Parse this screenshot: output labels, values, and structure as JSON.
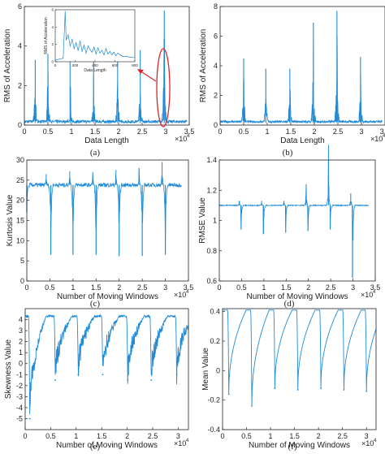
{
  "style": {
    "series_color": "#1f8ad6",
    "axis_color": "#222222",
    "callout_color": "#d9262c"
  },
  "chart_data": [
    {
      "type": "line",
      "caption": "(a)",
      "xlabel": "Data Length",
      "ylabel": "RMS of Acceleration",
      "xlim": [
        0,
        35000
      ],
      "ylim": [
        0,
        6
      ],
      "xticks": [
        0,
        5000,
        10000,
        15000,
        20000,
        25000,
        30000,
        35000
      ],
      "xtick_labels": [
        "0",
        "0.5",
        "1",
        "1.5",
        "2",
        "2.5",
        "3",
        "3.5"
      ],
      "yticks": [
        0,
        2,
        4,
        6
      ],
      "ytick_labels": [
        "0",
        "2",
        "4",
        "6"
      ],
      "x_multiplier": "×10",
      "x_multiplier_exp": "4",
      "baseline": 0.1,
      "peaks": [
        {
          "x": 2300,
          "y": 3.3
        },
        {
          "x": 5000,
          "y": 3.6
        },
        {
          "x": 9700,
          "y": 3.5
        },
        {
          "x": 14700,
          "y": 3.5
        },
        {
          "x": 19800,
          "y": 3.6
        },
        {
          "x": 24600,
          "y": 3.8
        },
        {
          "x": 29700,
          "y": 5.8
        }
      ],
      "inset": {
        "xlabel": "Data Length",
        "ylabel": "RMS of Acceleration",
        "xticks": [
          0,
          200,
          400,
          600,
          800
        ],
        "xtick_labels": [
          "0",
          "200",
          "400",
          "600",
          "800"
        ],
        "yticks": [
          0,
          2,
          4,
          6
        ],
        "ytick_labels": [
          "0",
          "2",
          "4",
          "6"
        ],
        "xlim": [
          0,
          800
        ],
        "ylim": [
          0,
          6
        ],
        "x": [
          0,
          40,
          80,
          100,
          110,
          130,
          150,
          170,
          190,
          210,
          230,
          250,
          270,
          290,
          310,
          330,
          350,
          370,
          390,
          410,
          430,
          450,
          470,
          490,
          510,
          530,
          550,
          570,
          590,
          610,
          630,
          650,
          680,
          720,
          760,
          800
        ],
        "y": [
          0.2,
          0.3,
          0.4,
          5.8,
          2.5,
          3.1,
          1.8,
          2.6,
          1.5,
          2.2,
          1.3,
          2.4,
          1.2,
          1.9,
          1.0,
          1.8,
          1.4,
          1.1,
          1.7,
          0.9,
          1.6,
          1.0,
          1.3,
          0.8,
          1.5,
          0.9,
          1.2,
          0.8,
          1.1,
          0.7,
          1.0,
          0.8,
          0.6,
          0.6,
          0.5,
          0.5
        ]
      }
    },
    {
      "type": "line",
      "caption": "(b)",
      "xlabel": "Data Length",
      "ylabel": "RMS of Acceleration",
      "xlim": [
        0,
        35000
      ],
      "ylim": [
        0,
        8
      ],
      "xticks": [
        0,
        5000,
        10000,
        15000,
        20000,
        25000,
        30000,
        35000
      ],
      "xtick_labels": [
        "0",
        "0.5",
        "1",
        "1.5",
        "2",
        "2.5",
        "3",
        "3.5"
      ],
      "yticks": [
        0,
        2,
        4,
        6,
        8
      ],
      "ytick_labels": [
        "0",
        "2",
        "4",
        "6",
        "8"
      ],
      "x_multiplier": "×10",
      "x_multiplier_exp": "4",
      "baseline": 0.15,
      "peaks": [
        {
          "x": 5000,
          "y": 4.5
        },
        {
          "x": 9700,
          "y": 3.8
        },
        {
          "x": 14800,
          "y": 3.8
        },
        {
          "x": 19800,
          "y": 6.9
        },
        {
          "x": 24800,
          "y": 7.7
        },
        {
          "x": 29800,
          "y": 4.6
        }
      ]
    },
    {
      "type": "line",
      "caption": "(c)",
      "xlabel": "Number of Moving Windows",
      "ylabel": "Kurtosis Value",
      "xlim": [
        0,
        35000
      ],
      "ylim": [
        0,
        30
      ],
      "xticks": [
        0,
        5000,
        10000,
        15000,
        20000,
        25000,
        30000,
        35000
      ],
      "xtick_labels": [
        "0",
        "0.5",
        "1",
        "1.5",
        "2",
        "2.5",
        "3",
        "3.5"
      ],
      "yticks": [
        0,
        5,
        10,
        15,
        20,
        25,
        30
      ],
      "ytick_labels": [
        "0",
        "5",
        "10",
        "15",
        "20",
        "25",
        "30"
      ],
      "x_multiplier": "×10",
      "x_multiplier_exp": "4",
      "x_end": 33500,
      "baseline": 23.8,
      "noise": 0.5,
      "mode": "down",
      "spikes_down": [
        {
          "x": 0,
          "y": 17
        },
        {
          "x": 5200,
          "y": 6.5
        },
        {
          "x": 10000,
          "y": 6.5
        },
        {
          "x": 15000,
          "y": 6.5
        },
        {
          "x": 20000,
          "y": 6.2
        },
        {
          "x": 25000,
          "y": 6.2
        },
        {
          "x": 30000,
          "y": 6.5
        }
      ],
      "spikes_up": [
        {
          "x": 4200,
          "y": 26.5
        },
        {
          "x": 9300,
          "y": 27.2
        },
        {
          "x": 14300,
          "y": 27.0
        },
        {
          "x": 19300,
          "y": 27.5
        },
        {
          "x": 24300,
          "y": 28.0
        },
        {
          "x": 29300,
          "y": 29.5
        }
      ]
    },
    {
      "type": "line",
      "caption": "(d)",
      "xlabel": "Number of Moving Windows",
      "ylabel": "RMSE Value",
      "xlim": [
        0,
        35000
      ],
      "ylim": [
        0.6,
        1.4
      ],
      "xticks": [
        0,
        5000,
        10000,
        15000,
        20000,
        25000,
        30000,
        35000
      ],
      "xtick_labels": [
        "0",
        "0.5",
        "1",
        "1.5",
        "2",
        "2.5",
        "3",
        "3.5"
      ],
      "yticks": [
        0.6,
        0.8,
        1.0,
        1.2,
        1.4
      ],
      "ytick_labels": [
        "0.6",
        "0.8",
        "1",
        "1.2",
        "1.4"
      ],
      "x_multiplier": "×10",
      "x_multiplier_exp": "4",
      "x_end": 33500,
      "baseline": 1.1,
      "noise": 0.003,
      "mode": "down",
      "spikes_down": [
        {
          "x": 4900,
          "y": 0.94
        },
        {
          "x": 9900,
          "y": 0.91
        },
        {
          "x": 14900,
          "y": 0.92
        },
        {
          "x": 19900,
          "y": 0.93
        },
        {
          "x": 24900,
          "y": 0.94
        },
        {
          "x": 29900,
          "y": 0.62
        }
      ],
      "spikes_up": [
        {
          "x": 4500,
          "y": 1.13
        },
        {
          "x": 9500,
          "y": 1.13
        },
        {
          "x": 14500,
          "y": 1.13
        },
        {
          "x": 19500,
          "y": 1.24
        },
        {
          "x": 24500,
          "y": 1.5
        },
        {
          "x": 29500,
          "y": 1.18
        }
      ]
    },
    {
      "type": "line",
      "caption": "(e)",
      "xlabel": "Number of Moving Windows",
      "ylabel": "Skewness Value",
      "xlim": [
        0,
        32000
      ],
      "ylim": [
        -6,
        5
      ],
      "xticks": [
        0,
        5000,
        10000,
        15000,
        20000,
        25000,
        30000
      ],
      "xtick_labels": [
        "0",
        "0.5",
        "1",
        "1.5",
        "2",
        "2.5",
        "3"
      ],
      "yticks": [
        -5,
        -4,
        -3,
        -2,
        -1,
        0,
        1,
        2,
        3,
        4
      ],
      "ytick_labels": [
        "-5",
        "-4",
        "-3",
        "-2",
        "-1",
        "0",
        "1",
        "2",
        "3",
        "4"
      ],
      "x_multiplier": "×10",
      "x_multiplier_exp": "4",
      "x_end": 32000,
      "baseline": 4.3,
      "noise": 0.1,
      "mode": "drop",
      "drops": [
        {
          "x": 900,
          "y": -5.0
        },
        {
          "x": 5900,
          "y": -1.5
        },
        {
          "x": 10400,
          "y": -1.0
        },
        {
          "x": 15200,
          "y": -1.0
        },
        {
          "x": 20100,
          "y": -1.5
        },
        {
          "x": 24700,
          "y": -1.5
        },
        {
          "x": 29700,
          "y": -1.0
        }
      ],
      "recover": 3200
    },
    {
      "type": "line",
      "caption": "(f)",
      "xlabel": "Number of Moving Windows",
      "ylabel": "Mean Value",
      "xlim": [
        0,
        32000
      ],
      "ylim": [
        -0.4,
        0.42
      ],
      "xticks": [
        0,
        5000,
        10000,
        15000,
        20000,
        25000,
        30000
      ],
      "xtick_labels": [
        "0",
        "0.5",
        "1",
        "1.5",
        "2",
        "2.5",
        "3"
      ],
      "yticks": [
        -0.4,
        -0.2,
        0,
        0.2,
        0.4
      ],
      "ytick_labels": [
        "-0.4",
        "-0.2",
        "0",
        "0.2",
        "0.4"
      ],
      "x_multiplier": "×10",
      "x_multiplier_exp": "4",
      "x_end": 32000,
      "baseline": 0.41,
      "noise": 0.0,
      "mode": "drop",
      "drops": [
        {
          "x": 1300,
          "y": -0.16
        },
        {
          "x": 6100,
          "y": -0.24
        },
        {
          "x": 10900,
          "y": -0.12
        },
        {
          "x": 15700,
          "y": -0.13
        },
        {
          "x": 20500,
          "y": -0.12
        },
        {
          "x": 25300,
          "y": -0.13
        },
        {
          "x": 30000,
          "y": -0.14
        }
      ],
      "recover": 3600
    }
  ]
}
